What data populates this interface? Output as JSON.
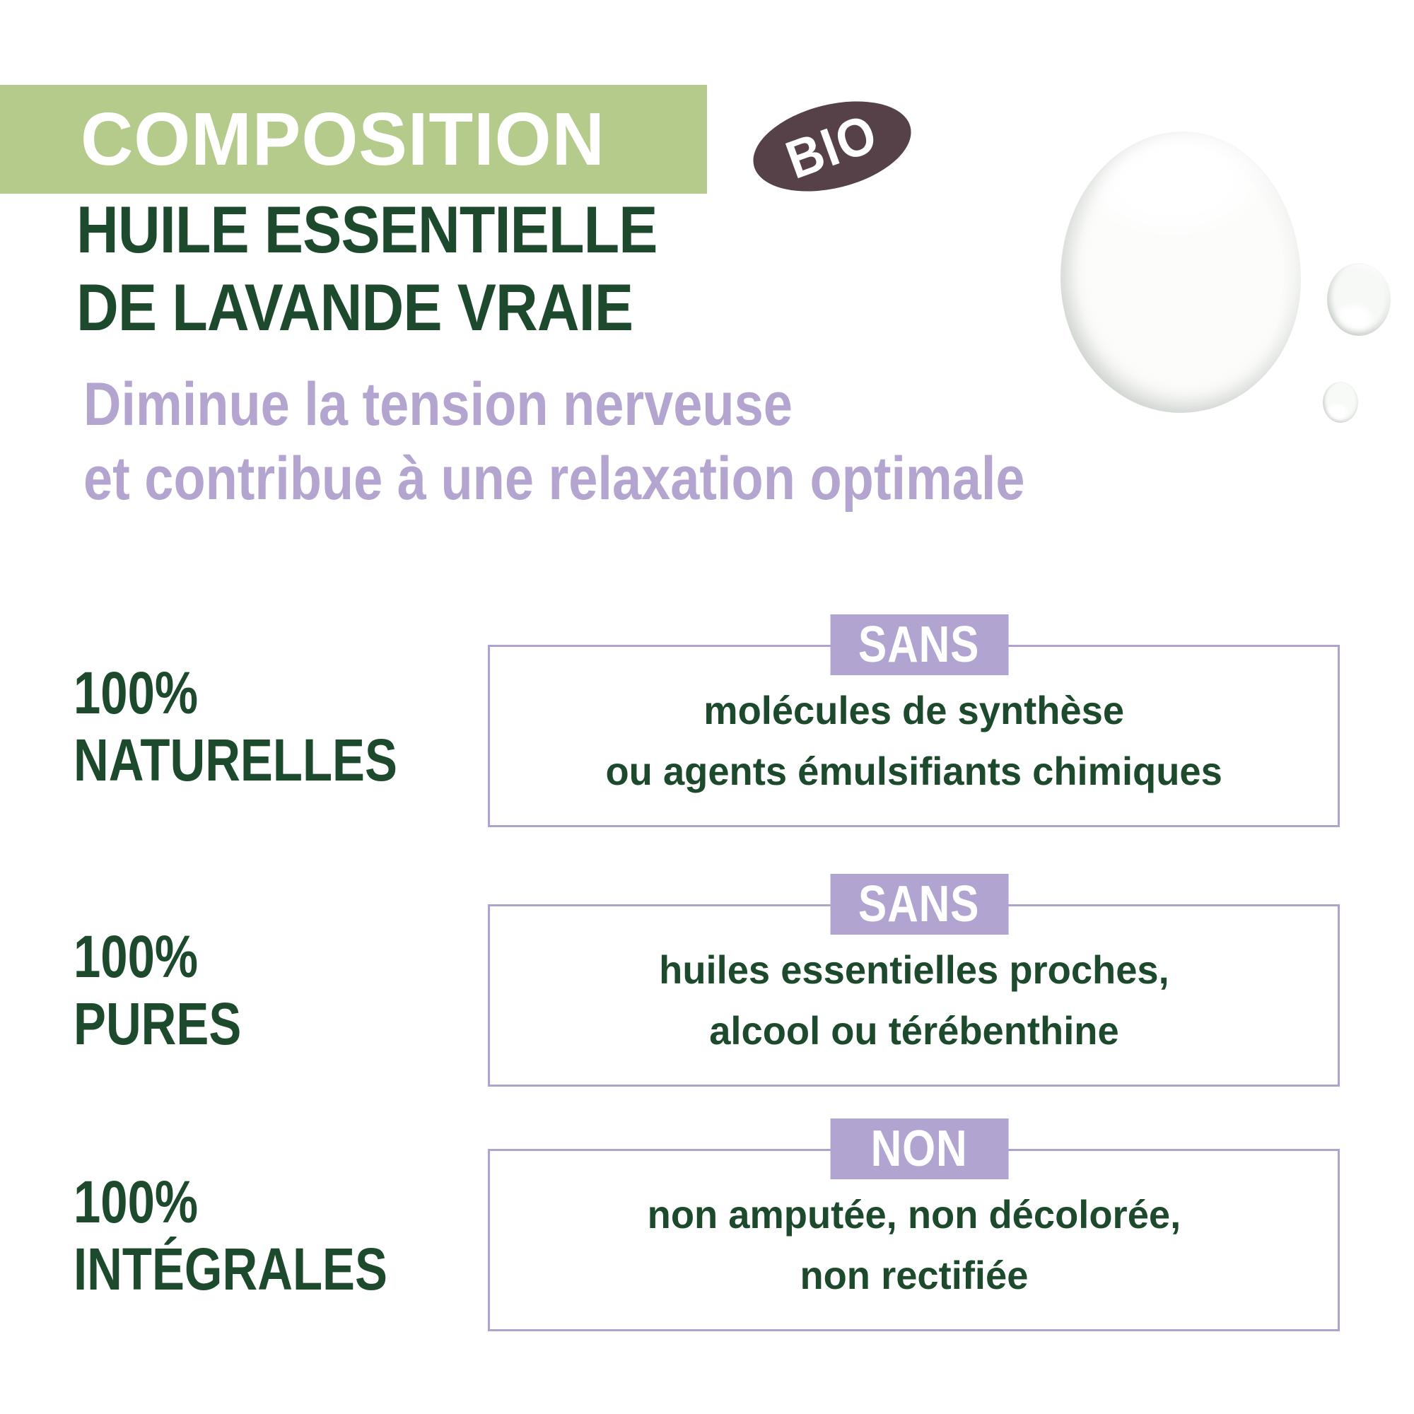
{
  "banner": {
    "label": "COMPOSITION"
  },
  "bio_badge": {
    "label": "BIO"
  },
  "heading": {
    "line1": "HUILE ESSENTIELLE",
    "line2": "DE LAVANDE VRAIE"
  },
  "subtitle": {
    "line1": "Diminue la tension nerveuse",
    "line2": "et contribue à une relaxation optimale"
  },
  "rows": [
    {
      "stat_line1": "100%",
      "stat_line2": "NATURELLES",
      "badge": "SANS",
      "desc_line1": "molécules de synthèse",
      "desc_line2": "ou agents émulsifiants chimiques"
    },
    {
      "stat_line1": "100%",
      "stat_line2": "PURES",
      "badge": "SANS",
      "desc_line1": "huiles essentielles proches,",
      "desc_line2": "alcool ou térébenthine"
    },
    {
      "stat_line1": "100%",
      "stat_line2": "INTÉGRALES",
      "badge": "NON",
      "desc_line1": "non amputée, non décolorée,",
      "desc_line2": "non rectifiée"
    }
  ],
  "colors": {
    "banner_green": "#b4cb8b",
    "dark_green_text": "#1d4a2c",
    "lavender_text": "#b3a5d0",
    "badge_lavender": "#b2a4d1",
    "box_border_lavender": "#b0a2ce",
    "bio_brown": "#564149"
  }
}
